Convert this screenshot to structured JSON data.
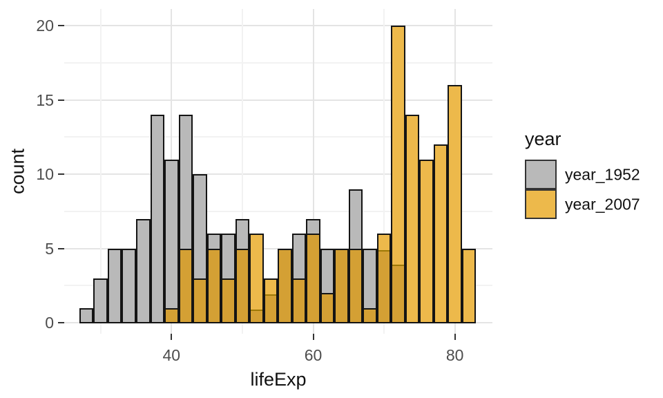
{
  "chart_data": {
    "type": "bar",
    "subtype": "overlaid-histogram",
    "title": "",
    "xlabel": "lifeExp",
    "ylabel": "count",
    "x_tick_labels": [
      "40",
      "60",
      "80"
    ],
    "x_ticks": [
      40,
      60,
      80
    ],
    "x_minor_gridlines": [
      30,
      50,
      70
    ],
    "y_tick_labels": [
      "0",
      "5",
      "10",
      "15",
      "20"
    ],
    "y_ticks": [
      0,
      5,
      10,
      15,
      20
    ],
    "y_minor_gridlines": [
      2.5,
      7.5,
      12.5,
      17.5
    ],
    "xlim": [
      26.2,
      84.6
    ],
    "ylim": [
      0,
      20
    ],
    "grid": true,
    "bin_width": 2,
    "bin_edges_start": 27,
    "bin_centers": [
      28,
      30,
      32,
      34,
      36,
      38,
      40,
      42,
      44,
      46,
      48,
      50,
      52,
      54,
      56,
      58,
      60,
      62,
      64,
      66,
      68,
      70,
      72,
      74,
      76,
      78,
      80,
      82
    ],
    "series": [
      {
        "name": "year_1952",
        "values": [
          1,
          3,
          5,
          5,
          7,
          14,
          11,
          14,
          10,
          6,
          6,
          7,
          1,
          2,
          5,
          6,
          7,
          5,
          5,
          9,
          5,
          5,
          4,
          0,
          0,
          0,
          0,
          0
        ]
      },
      {
        "name": "year_2007",
        "values": [
          0,
          0,
          0,
          0,
          0,
          0,
          1,
          5,
          3,
          5,
          3,
          5,
          6,
          3,
          5,
          3,
          6,
          2,
          5,
          5,
          1,
          6,
          20,
          14,
          11,
          12,
          16,
          5
        ]
      }
    ],
    "legend": {
      "title": "year",
      "position": "right",
      "entries": [
        {
          "label": "year_1952",
          "color": "#b9b9b9"
        },
        {
          "label": "year_2007",
          "color": "#edb94b"
        }
      ]
    }
  },
  "colors": {
    "series_1952_fill": "#b9b9b9",
    "series_2007_fill": "#edb94b",
    "overlap_fill": "#d4a034",
    "overlap_divider": "#9d7807",
    "bar_border": "#141414",
    "grid_major": "#e4e4e4",
    "grid_minor": "#f2f2f2",
    "axis_tick": "#333333",
    "tick_label_color": "#4d4d4d",
    "title_color": "#111111",
    "background": "#ffffff"
  }
}
